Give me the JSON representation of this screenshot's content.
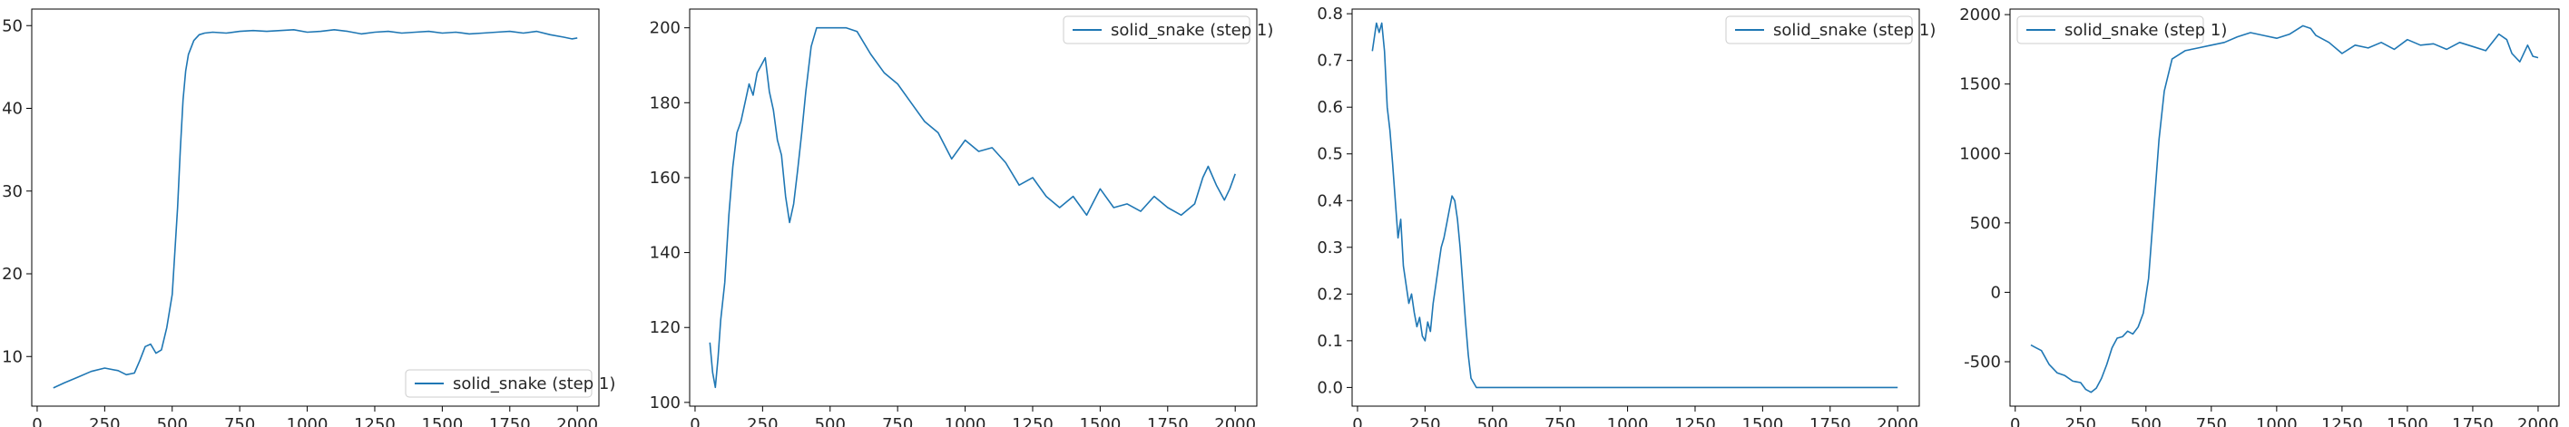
{
  "chart_data": [
    {
      "type": "line",
      "series": [
        {
          "name": "solid_snake (step 1)",
          "color": "#1f77b4",
          "x": [
            60,
            100,
            150,
            200,
            250,
            300,
            330,
            360,
            380,
            400,
            420,
            440,
            460,
            480,
            500,
            520,
            530,
            540,
            550,
            560,
            580,
            600,
            620,
            650,
            700,
            750,
            800,
            850,
            900,
            950,
            1000,
            1050,
            1100,
            1150,
            1200,
            1250,
            1300,
            1350,
            1400,
            1450,
            1500,
            1550,
            1600,
            1650,
            1700,
            1750,
            1800,
            1850,
            1900,
            1950,
            1980,
            2000
          ],
          "y": [
            6.2,
            6.8,
            7.5,
            8.2,
            8.6,
            8.3,
            7.8,
            8.0,
            9.5,
            11.2,
            11.5,
            10.4,
            10.8,
            13.5,
            17.5,
            28.0,
            35.0,
            41.0,
            44.5,
            46.5,
            48.2,
            48.9,
            49.1,
            49.2,
            49.1,
            49.3,
            49.4,
            49.3,
            49.4,
            49.5,
            49.2,
            49.3,
            49.5,
            49.3,
            49.0,
            49.2,
            49.3,
            49.1,
            49.2,
            49.3,
            49.1,
            49.2,
            49.0,
            49.1,
            49.2,
            49.3,
            49.1,
            49.3,
            48.9,
            48.6,
            48.4,
            48.5
          ]
        }
      ],
      "xlim": [
        -20,
        2080
      ],
      "ylim": [
        4,
        52
      ],
      "xticks": [
        0,
        250,
        500,
        750,
        1000,
        1250,
        1500,
        1750,
        2000
      ],
      "yticks": [
        10,
        20,
        30,
        40,
        50
      ],
      "legend_loc": "lower-right",
      "grid": false
    },
    {
      "type": "line",
      "series": [
        {
          "name": "solid_snake (step 1)",
          "color": "#1f77b4",
          "x": [
            55,
            65,
            75,
            85,
            95,
            110,
            125,
            140,
            155,
            170,
            185,
            200,
            215,
            230,
            245,
            260,
            275,
            290,
            305,
            320,
            335,
            350,
            365,
            380,
            395,
            410,
            430,
            450,
            480,
            520,
            560,
            600,
            650,
            700,
            750,
            800,
            850,
            900,
            950,
            1000,
            1050,
            1100,
            1150,
            1200,
            1250,
            1300,
            1350,
            1400,
            1450,
            1500,
            1550,
            1600,
            1650,
            1700,
            1750,
            1800,
            1850,
            1880,
            1900,
            1930,
            1960,
            1980,
            2000
          ],
          "y": [
            116,
            108,
            104,
            112,
            122,
            132,
            150,
            163,
            172,
            175,
            180,
            185,
            182,
            188,
            190,
            192,
            183,
            178,
            170,
            166,
            155,
            148,
            153,
            162,
            172,
            183,
            195,
            200,
            200,
            200,
            200,
            199,
            193,
            188,
            185,
            180,
            175,
            172,
            165,
            170,
            167,
            168,
            164,
            158,
            160,
            155,
            152,
            155,
            150,
            157,
            152,
            153,
            151,
            155,
            152,
            150,
            153,
            160,
            163,
            158,
            154,
            157,
            161
          ]
        }
      ],
      "xlim": [
        -20,
        2080
      ],
      "ylim": [
        99,
        205
      ],
      "xticks": [
        0,
        250,
        500,
        750,
        1000,
        1250,
        1500,
        1750,
        2000
      ],
      "yticks": [
        100,
        120,
        140,
        160,
        180,
        200
      ],
      "legend_loc": "upper-right",
      "grid": false
    },
    {
      "type": "line",
      "series": [
        {
          "name": "solid_snake (step 1)",
          "color": "#1f77b4",
          "x": [
            55,
            60,
            70,
            80,
            90,
            100,
            110,
            120,
            130,
            140,
            150,
            160,
            170,
            180,
            190,
            200,
            210,
            220,
            230,
            240,
            250,
            260,
            270,
            280,
            290,
            300,
            310,
            320,
            330,
            340,
            350,
            360,
            370,
            380,
            390,
            400,
            410,
            420,
            440,
            500,
            600,
            800,
            1000,
            1200,
            1400,
            1600,
            1800,
            2000
          ],
          "y": [
            0.72,
            0.74,
            0.78,
            0.76,
            0.78,
            0.72,
            0.6,
            0.55,
            0.48,
            0.4,
            0.32,
            0.36,
            0.26,
            0.22,
            0.18,
            0.2,
            0.16,
            0.13,
            0.15,
            0.11,
            0.1,
            0.14,
            0.12,
            0.18,
            0.22,
            0.26,
            0.3,
            0.32,
            0.35,
            0.38,
            0.41,
            0.4,
            0.36,
            0.3,
            0.22,
            0.14,
            0.07,
            0.02,
            0.0,
            0.0,
            0.0,
            0.0,
            0.0,
            0.0,
            0.0,
            0.0,
            0.0,
            0.0
          ]
        }
      ],
      "xlim": [
        -20,
        2080
      ],
      "ylim": [
        -0.04,
        0.81
      ],
      "xticks": [
        0,
        250,
        500,
        750,
        1000,
        1250,
        1500,
        1750,
        2000
      ],
      "yticks": [
        0.0,
        0.1,
        0.2,
        0.3,
        0.4,
        0.5,
        0.6,
        0.7,
        0.8
      ],
      "legend_loc": "upper-right",
      "grid": false
    },
    {
      "type": "line",
      "series": [
        {
          "name": "solid_snake (step 1)",
          "color": "#1f77b4",
          "x": [
            60,
            80,
            100,
            130,
            160,
            190,
            220,
            250,
            270,
            290,
            310,
            330,
            350,
            370,
            390,
            410,
            430,
            450,
            470,
            490,
            510,
            530,
            550,
            570,
            600,
            650,
            700,
            750,
            800,
            850,
            900,
            950,
            1000,
            1050,
            1100,
            1130,
            1150,
            1200,
            1250,
            1300,
            1350,
            1400,
            1450,
            1500,
            1550,
            1600,
            1650,
            1700,
            1750,
            1800,
            1850,
            1880,
            1900,
            1930,
            1960,
            1980,
            2000
          ],
          "y": [
            -380,
            -400,
            -420,
            -520,
            -580,
            -600,
            -640,
            -650,
            -700,
            -720,
            -690,
            -620,
            -520,
            -400,
            -330,
            -320,
            -280,
            -300,
            -250,
            -150,
            100,
            600,
            1100,
            1450,
            1680,
            1740,
            1760,
            1780,
            1800,
            1840,
            1870,
            1850,
            1830,
            1860,
            1920,
            1900,
            1850,
            1800,
            1720,
            1780,
            1760,
            1800,
            1750,
            1820,
            1780,
            1790,
            1750,
            1800,
            1770,
            1740,
            1860,
            1820,
            1720,
            1660,
            1780,
            1700,
            1690
          ]
        }
      ],
      "xlim": [
        -20,
        2080
      ],
      "ylim": [
        -820,
        2040
      ],
      "xticks": [
        0,
        250,
        500,
        750,
        1000,
        1250,
        1500,
        1750,
        2000
      ],
      "yticks": [
        -500,
        0,
        500,
        1000,
        1500,
        2000
      ],
      "legend_loc": "upper-left",
      "grid": false
    }
  ]
}
